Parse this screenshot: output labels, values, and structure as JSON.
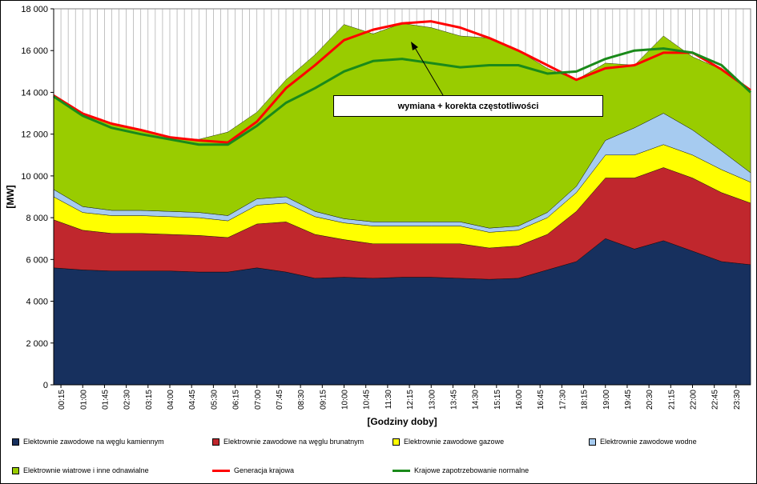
{
  "chart_data": {
    "type": "area",
    "title": "",
    "xlabel": "[Godziny doby]",
    "ylabel": "[MW]",
    "ylim": [
      0,
      18000
    ],
    "y_ticks": [
      "0",
      "2 000",
      "4 000",
      "6 000",
      "8 000",
      "10 000",
      "12 000",
      "14 000",
      "16 000",
      "18 000"
    ],
    "x_tick_labels": [
      "00:15",
      "01:00",
      "01:45",
      "02:30",
      "03:15",
      "04:00",
      "04:45",
      "05:30",
      "06:15",
      "07:00",
      "07:45",
      "08:30",
      "09:15",
      "10:00",
      "10:45",
      "11:30",
      "12:15",
      "13:00",
      "13:45",
      "14:30",
      "15:15",
      "16:00",
      "16:45",
      "17:30",
      "18:15",
      "19:00",
      "19:45",
      "20:30",
      "21:15",
      "22:00",
      "22:45",
      "23:30"
    ],
    "annotation": "wymiana + korekta częstotliwości",
    "grid": "vertical",
    "legend_position": "bottom",
    "x": [
      "00:00",
      "01:00",
      "02:00",
      "03:00",
      "04:00",
      "05:00",
      "06:00",
      "07:00",
      "08:00",
      "09:00",
      "10:00",
      "11:00",
      "12:00",
      "13:00",
      "14:00",
      "15:00",
      "16:00",
      "17:00",
      "18:00",
      "19:00",
      "20:00",
      "21:00",
      "22:00",
      "23:00",
      "24:00"
    ],
    "series": [
      {
        "name": "Elektownie zawodowe na węglu kamiennym",
        "color": "#17305e",
        "values": [
          5600,
          5500,
          5450,
          5450,
          5450,
          5400,
          5400,
          5600,
          5400,
          5100,
          5150,
          5100,
          5150,
          5150,
          5100,
          5050,
          5100,
          5500,
          5900,
          7000,
          6500,
          6900,
          6400,
          5900,
          5750
        ]
      },
      {
        "name": "Elektrownie zawodowe na węglu brunatnym",
        "color": "#c0272d",
        "values": [
          2300,
          1900,
          1800,
          1800,
          1750,
          1750,
          1650,
          2100,
          2400,
          2100,
          1800,
          1650,
          1600,
          1600,
          1650,
          1500,
          1550,
          1700,
          2400,
          2900,
          3400,
          3500,
          3500,
          3300,
          2950
        ]
      },
      {
        "name": "Elektrownie zawodowe gazowe",
        "color": "#ffff00",
        "values": [
          1100,
          850,
          850,
          850,
          850,
          850,
          800,
          900,
          900,
          850,
          800,
          850,
          850,
          850,
          850,
          750,
          750,
          800,
          900,
          1100,
          1100,
          1100,
          1100,
          1100,
          1000
        ]
      },
      {
        "name": "Elektrownie zawodowe wodne",
        "color": "#a6cbf0",
        "values": [
          350,
          280,
          250,
          250,
          250,
          250,
          250,
          300,
          300,
          250,
          200,
          200,
          200,
          200,
          200,
          200,
          200,
          250,
          300,
          700,
          1300,
          1500,
          1200,
          900,
          450
        ]
      },
      {
        "name": "Elektrownie wiatrowe i inne odnawialne",
        "color": "#99cc00",
        "values": [
          4500,
          4450,
          4150,
          3850,
          3550,
          3500,
          4000,
          4150,
          5600,
          7500,
          9300,
          9000,
          9500,
          9300,
          8900,
          9100,
          8400,
          6900,
          5100,
          3700,
          3000,
          3700,
          3500,
          3900,
          4000
        ]
      },
      {
        "name": "Generacja krajowa",
        "color": "#ff0000",
        "type": "line",
        "values": [
          13850,
          12980,
          12500,
          12200,
          11850,
          11700,
          11600,
          12600,
          14200,
          15300,
          16500,
          17000,
          17300,
          17400,
          17100,
          16600,
          16000,
          15300,
          14600,
          15150,
          15300,
          15900,
          15900,
          15100,
          14100
        ]
      },
      {
        "name": "Krajowe zapotrzebowanie normalne",
        "color": "#1a8a1a",
        "type": "line",
        "values": [
          13800,
          12880,
          12300,
          12000,
          11750,
          11500,
          11500,
          12400,
          13500,
          14200,
          15000,
          15500,
          15600,
          15400,
          15200,
          15300,
          15300,
          14900,
          15000,
          15600,
          16000,
          16100,
          15900,
          15300,
          14000
        ]
      }
    ]
  },
  "legend": {
    "item0": "Elektownie zawodowe na węglu kamiennym",
    "item1": "Elektrownie zawodowe na węglu brunatnym",
    "item2": "Elektrownie zawodowe gazowe",
    "item3": "Elektrownie zawodowe wodne",
    "item4": "Elektrownie wiatrowe i inne odnawialne",
    "item5": "Generacja krajowa",
    "item6": "Krajowe zapotrzebowanie normalne"
  }
}
